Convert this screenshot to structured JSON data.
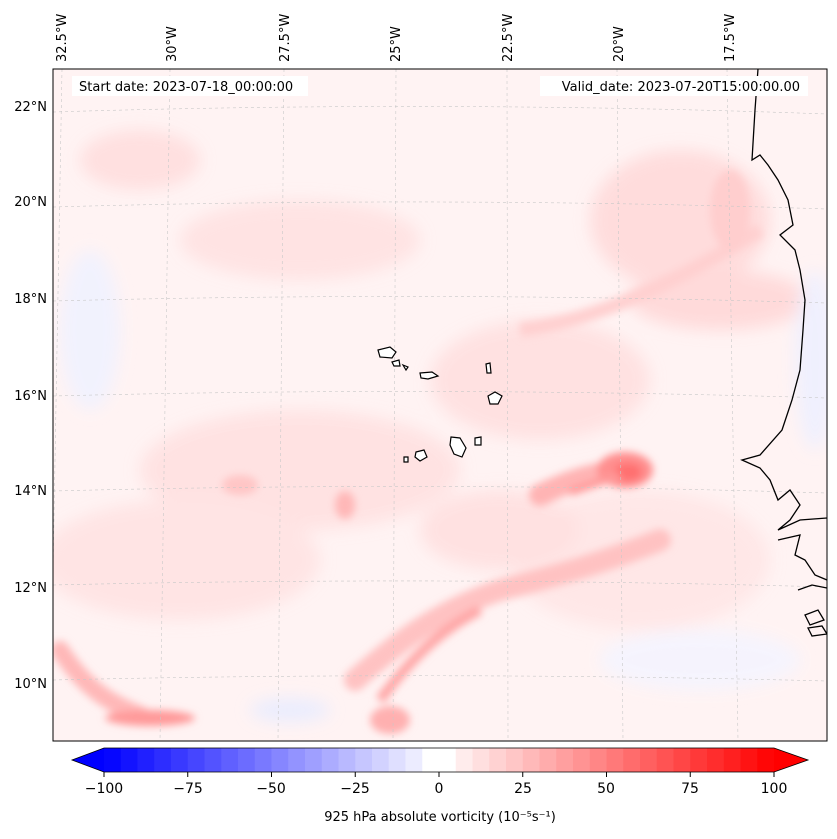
{
  "map": {
    "start_label": "Start date: 2023-07-18_00:00:00",
    "valid_label": "Valid_date: 2023-07-20T15:00:00.00",
    "lon_labels": [
      "32.5°W",
      "30°W",
      "27.5°W",
      "25°W",
      "22.5°W",
      "20°W",
      "17.5°W"
    ],
    "lat_labels": [
      "22°N",
      "20°N",
      "18°N",
      "16°N",
      "14°N",
      "12°N",
      "10°N"
    ],
    "colorbar": {
      "title": "925 hPa absolute vorticity (10⁻⁵s⁻¹)",
      "ticks": [
        "−100",
        "−75",
        "−50",
        "−25",
        "0",
        "25",
        "50",
        "75",
        "100"
      ],
      "min_color": "#0000ff",
      "mid_color": "#ffffff",
      "max_color": "#ff0000"
    }
  }
}
